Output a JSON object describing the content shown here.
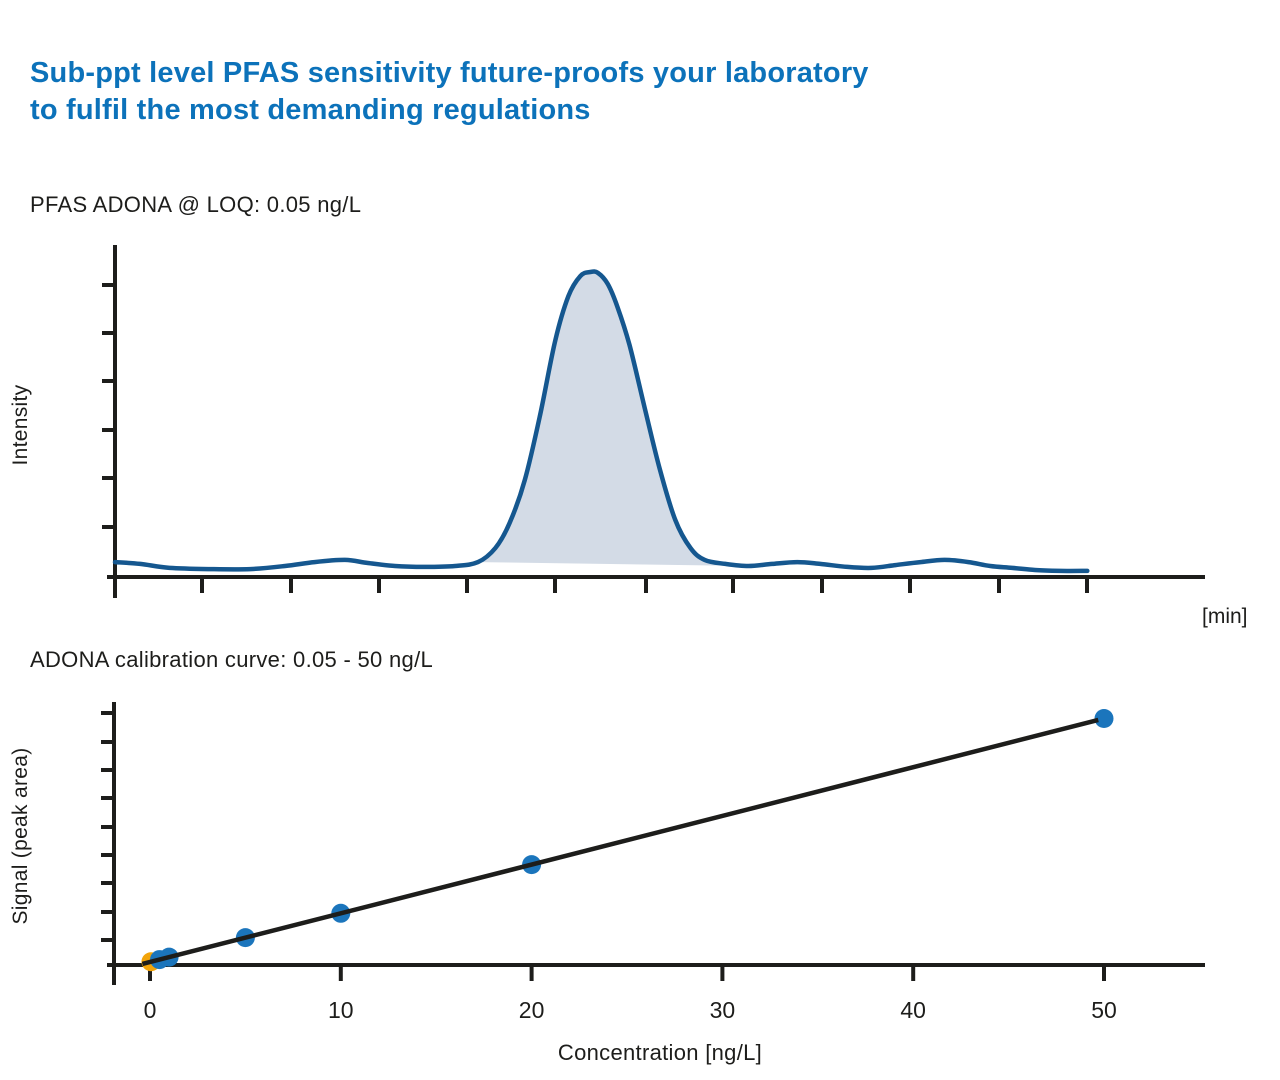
{
  "page": {
    "background": "#ffffff",
    "text_color": "#1d1d1b",
    "accent_color": "#0c72ba"
  },
  "title": {
    "line1": "Sub-ppt level PFAS sensitivity future-proofs your laboratory",
    "line2": "to fulfil the most demanding regulations",
    "color": "#0c72ba"
  },
  "chart_data": [
    {
      "id": "chromatogram",
      "type": "area",
      "title": "PFAS ADONA @ LOQ: 0.05 ng/L",
      "xlabel": "[min]",
      "ylabel": "Intensity",
      "x_tick_labels": [],
      "y_tick_labels": [],
      "grid": false,
      "line_color": "#15578f",
      "fill_color": "#d3dbe6",
      "axis_color": "#1d1d1b",
      "peak_apex_percent_of_time_axis": 43.6,
      "peak_fill_range_percent": [
        33.3,
        60.0
      ],
      "trace_percent_time_vs_intensity": [
        [
          0.0,
          4.9
        ],
        [
          2.3,
          4.3
        ],
        [
          5.0,
          3.0
        ],
        [
          8.7,
          2.6
        ],
        [
          12.4,
          2.6
        ],
        [
          15.6,
          3.6
        ],
        [
          18.3,
          4.9
        ],
        [
          21.1,
          5.6
        ],
        [
          23.2,
          4.6
        ],
        [
          25.7,
          3.6
        ],
        [
          28.4,
          3.3
        ],
        [
          31.2,
          3.6
        ],
        [
          33.3,
          4.9
        ],
        [
          34.9,
          9.5
        ],
        [
          36.2,
          17.7
        ],
        [
          37.6,
          31.8
        ],
        [
          39.0,
          53.1
        ],
        [
          40.4,
          77.7
        ],
        [
          41.6,
          92.1
        ],
        [
          42.7,
          98.7
        ],
        [
          43.6,
          100.0
        ],
        [
          44.3,
          99.7
        ],
        [
          45.2,
          96.1
        ],
        [
          46.1,
          88.5
        ],
        [
          47.2,
          76.1
        ],
        [
          48.6,
          55.4
        ],
        [
          50.0,
          35.1
        ],
        [
          51.4,
          18.7
        ],
        [
          52.8,
          9.5
        ],
        [
          54.1,
          5.6
        ],
        [
          56.0,
          4.3
        ],
        [
          58.1,
          3.6
        ],
        [
          60.3,
          4.3
        ],
        [
          62.6,
          4.9
        ],
        [
          64.7,
          4.3
        ],
        [
          67.2,
          3.3
        ],
        [
          69.4,
          3.0
        ],
        [
          71.6,
          3.9
        ],
        [
          73.9,
          4.9
        ],
        [
          76.1,
          5.6
        ],
        [
          78.3,
          4.9
        ],
        [
          80.3,
          3.6
        ],
        [
          82.3,
          3.0
        ],
        [
          84.4,
          2.3
        ],
        [
          86.7,
          2.0
        ],
        [
          89.2,
          2.0
        ]
      ]
    },
    {
      "id": "calibration",
      "type": "scatter",
      "title": "ADONA calibration curve: 0.05 - 50 ng/L",
      "xlabel": "Concentration [ng/L]",
      "ylabel": "Signal (peak area)",
      "x_ticks": [
        0,
        10,
        20,
        30,
        40,
        50
      ],
      "xlim": [
        -2,
        55
      ],
      "grid": false,
      "point_color": "#1b75bc",
      "highlight_color": "#f2a40a",
      "line_color": "#1d1d1b",
      "axis_color": "#1d1d1b",
      "points": [
        {
          "conc": 0.05,
          "highlight": true
        },
        {
          "conc": 0.5
        },
        {
          "conc": 1
        },
        {
          "conc": 5
        },
        {
          "conc": 10
        },
        {
          "conc": 20
        },
        {
          "conc": 50
        }
      ],
      "fit_line": {
        "linear": true,
        "from_conc": -0.4,
        "to_conc": 49.7
      }
    }
  ]
}
